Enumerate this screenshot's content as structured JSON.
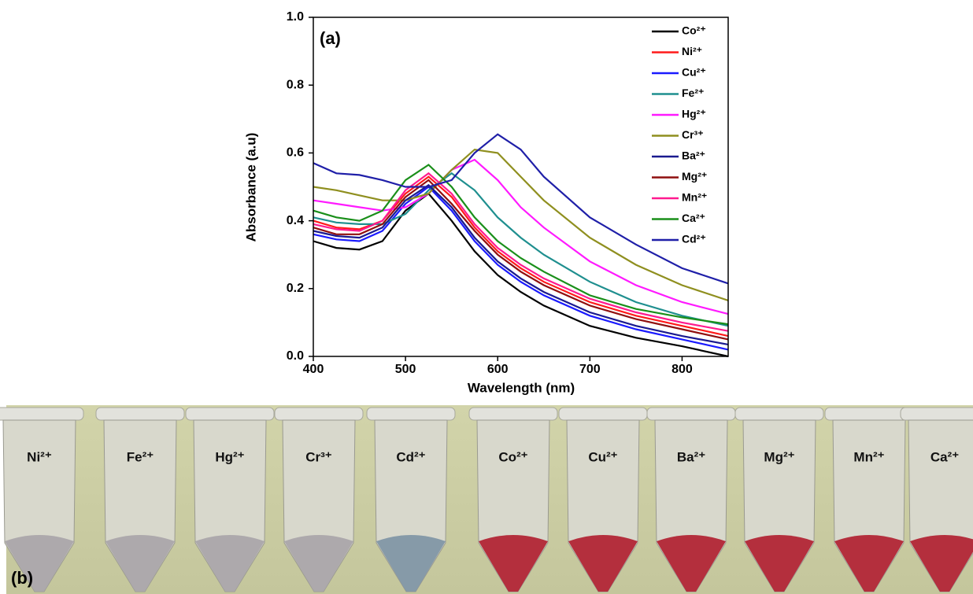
{
  "chart_data": {
    "type": "line",
    "annotation": "(a)",
    "x_label": "Wavelength (nm)",
    "y_label": "Absorbance (a.u)",
    "x": [
      400,
      425,
      450,
      475,
      500,
      525,
      550,
      575,
      600,
      625,
      650,
      700,
      750,
      800,
      850
    ],
    "xlim": [
      400,
      850
    ],
    "xticks": [
      400,
      500,
      600,
      700,
      800
    ],
    "ylim": [
      0,
      1
    ],
    "yticks": [
      {
        "value": 0,
        "label": "0.0"
      },
      0.2,
      0.4,
      0.6,
      0.8,
      {
        "value": 1,
        "label": "1.0"
      }
    ],
    "series": [
      {
        "name": "Co²⁺",
        "color": "#000000",
        "values": [
          0.34,
          0.32,
          0.315,
          0.34,
          0.43,
          0.48,
          0.4,
          0.31,
          0.24,
          0.19,
          0.15,
          0.09,
          0.055,
          0.03,
          0.0
        ]
      },
      {
        "name": "Ni²⁺",
        "color": "#ff1a1a",
        "values": [
          0.4,
          0.38,
          0.375,
          0.4,
          0.48,
          0.53,
          0.47,
          0.38,
          0.31,
          0.26,
          0.22,
          0.16,
          0.12,
          0.09,
          0.06
        ]
      },
      {
        "name": "Cu²⁺",
        "color": "#1a1aff",
        "values": [
          0.36,
          0.345,
          0.34,
          0.37,
          0.45,
          0.5,
          0.43,
          0.34,
          0.27,
          0.22,
          0.18,
          0.12,
          0.08,
          0.05,
          0.02
        ]
      },
      {
        "name": "Fe²⁺",
        "color": "#1f8f8f",
        "values": [
          0.41,
          0.395,
          0.39,
          0.39,
          0.42,
          0.49,
          0.54,
          0.49,
          0.41,
          0.35,
          0.3,
          0.22,
          0.16,
          0.12,
          0.09
        ]
      },
      {
        "name": "Hg²⁺",
        "color": "#ff1aff",
        "values": [
          0.46,
          0.45,
          0.44,
          0.43,
          0.44,
          0.48,
          0.55,
          0.58,
          0.52,
          0.44,
          0.38,
          0.28,
          0.21,
          0.16,
          0.125
        ]
      },
      {
        "name": "Cr³⁺",
        "color": "#8f8f1f",
        "values": [
          0.5,
          0.49,
          0.475,
          0.46,
          0.46,
          0.48,
          0.55,
          0.61,
          0.6,
          0.53,
          0.46,
          0.35,
          0.27,
          0.21,
          0.165
        ]
      },
      {
        "name": "Ba²⁺",
        "color": "#1a1a8f",
        "values": [
          0.37,
          0.355,
          0.35,
          0.38,
          0.46,
          0.505,
          0.44,
          0.35,
          0.28,
          0.23,
          0.19,
          0.13,
          0.09,
          0.06,
          0.035
        ]
      },
      {
        "name": "Mg²⁺",
        "color": "#8f0f0f",
        "values": [
          0.38,
          0.36,
          0.36,
          0.39,
          0.47,
          0.52,
          0.45,
          0.37,
          0.3,
          0.25,
          0.21,
          0.15,
          0.11,
          0.08,
          0.05
        ]
      },
      {
        "name": "Mn²⁺",
        "color": "#ff1a8f",
        "values": [
          0.39,
          0.375,
          0.37,
          0.4,
          0.49,
          0.54,
          0.48,
          0.39,
          0.32,
          0.27,
          0.23,
          0.17,
          0.13,
          0.1,
          0.075
        ]
      },
      {
        "name": "Ca²⁺",
        "color": "#1a8f1a",
        "values": [
          0.43,
          0.41,
          0.4,
          0.43,
          0.52,
          0.565,
          0.5,
          0.41,
          0.34,
          0.29,
          0.25,
          0.18,
          0.14,
          0.115,
          0.095
        ]
      },
      {
        "name": "Cd²⁺",
        "color": "#1f1fa8",
        "values": [
          0.57,
          0.54,
          0.535,
          0.52,
          0.5,
          0.5,
          0.52,
          0.6,
          0.655,
          0.61,
          0.53,
          0.41,
          0.33,
          0.26,
          0.215
        ]
      }
    ]
  },
  "photo": {
    "panel_label": "(b)",
    "tubes": [
      "Ni²⁺",
      "Fe²⁺",
      "Hg²⁺",
      "Cr³⁺",
      "Cd²⁺",
      "Co²⁺",
      "Cu²⁺",
      "Ba²⁺",
      "Mg²⁺",
      "Mn²⁺",
      "Ca²⁺"
    ]
  }
}
